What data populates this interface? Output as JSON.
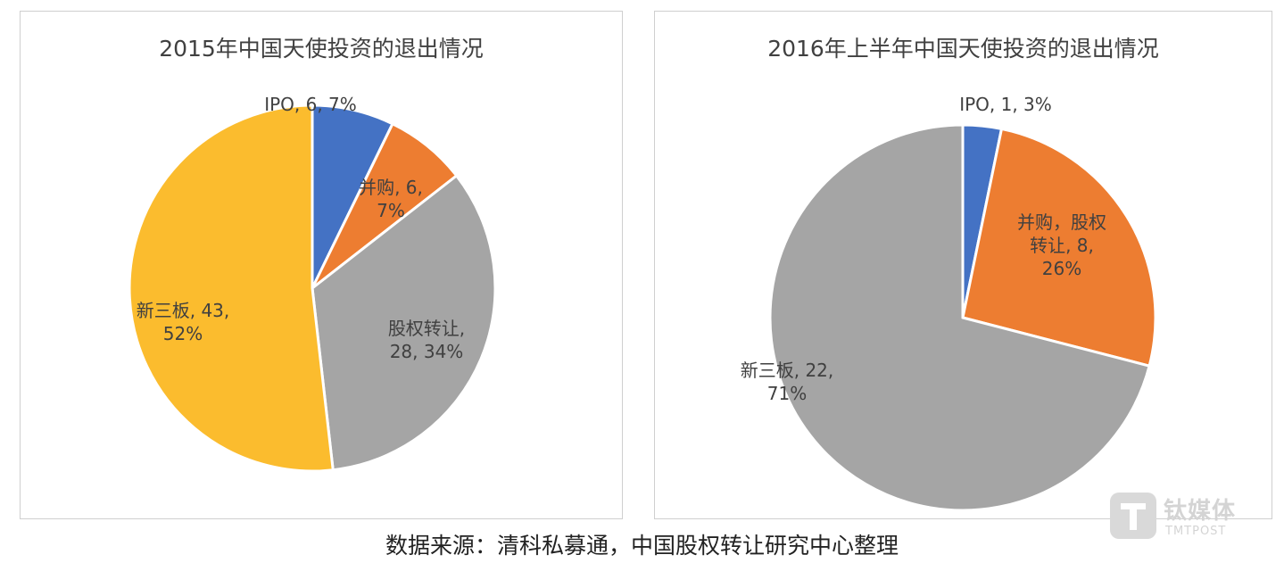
{
  "chart_data": [
    {
      "type": "pie",
      "title": "2015年中国天使投资的退出情况",
      "slices": [
        {
          "name": "IPO",
          "value": 6,
          "percent": "7%",
          "color": "#4472C4",
          "label_lines": [
            "IPO, 6, 7%"
          ]
        },
        {
          "name": "并购",
          "value": 6,
          "percent": "7%",
          "color": "#ED7D31",
          "label_lines": [
            "并购, 6,",
            "7%"
          ]
        },
        {
          "name": "股权转让",
          "value": 28,
          "percent": "34%",
          "color": "#A5A5A5",
          "label_lines": [
            "股权转让,",
            "28, 34%"
          ]
        },
        {
          "name": "新三板",
          "value": 43,
          "percent": "52%",
          "color": "#FBBC2E",
          "label_lines": [
            "新三板, 43,",
            "52%"
          ]
        }
      ]
    },
    {
      "type": "pie",
      "title": "2016年上半年中国天使投资的退出情况",
      "slices": [
        {
          "name": "IPO",
          "value": 1,
          "percent": "3%",
          "color": "#4472C4",
          "label_lines": [
            "IPO, 1, 3%"
          ]
        },
        {
          "name": "并购，股权转让",
          "value": 8,
          "percent": "26%",
          "color": "#ED7D31",
          "label_lines": [
            "并购，股权",
            "转让, 8,",
            "26%"
          ]
        },
        {
          "name": "新三板",
          "value": 22,
          "percent": "71%",
          "color": "#A5A5A5",
          "label_lines": [
            "新三板, 22,",
            "71%"
          ]
        }
      ]
    }
  ],
  "source_note": "数据来源：清科私募通，中国股权转让研究中心整理",
  "watermark": {
    "cn": "钛媒体",
    "en": "TMTPOST"
  }
}
